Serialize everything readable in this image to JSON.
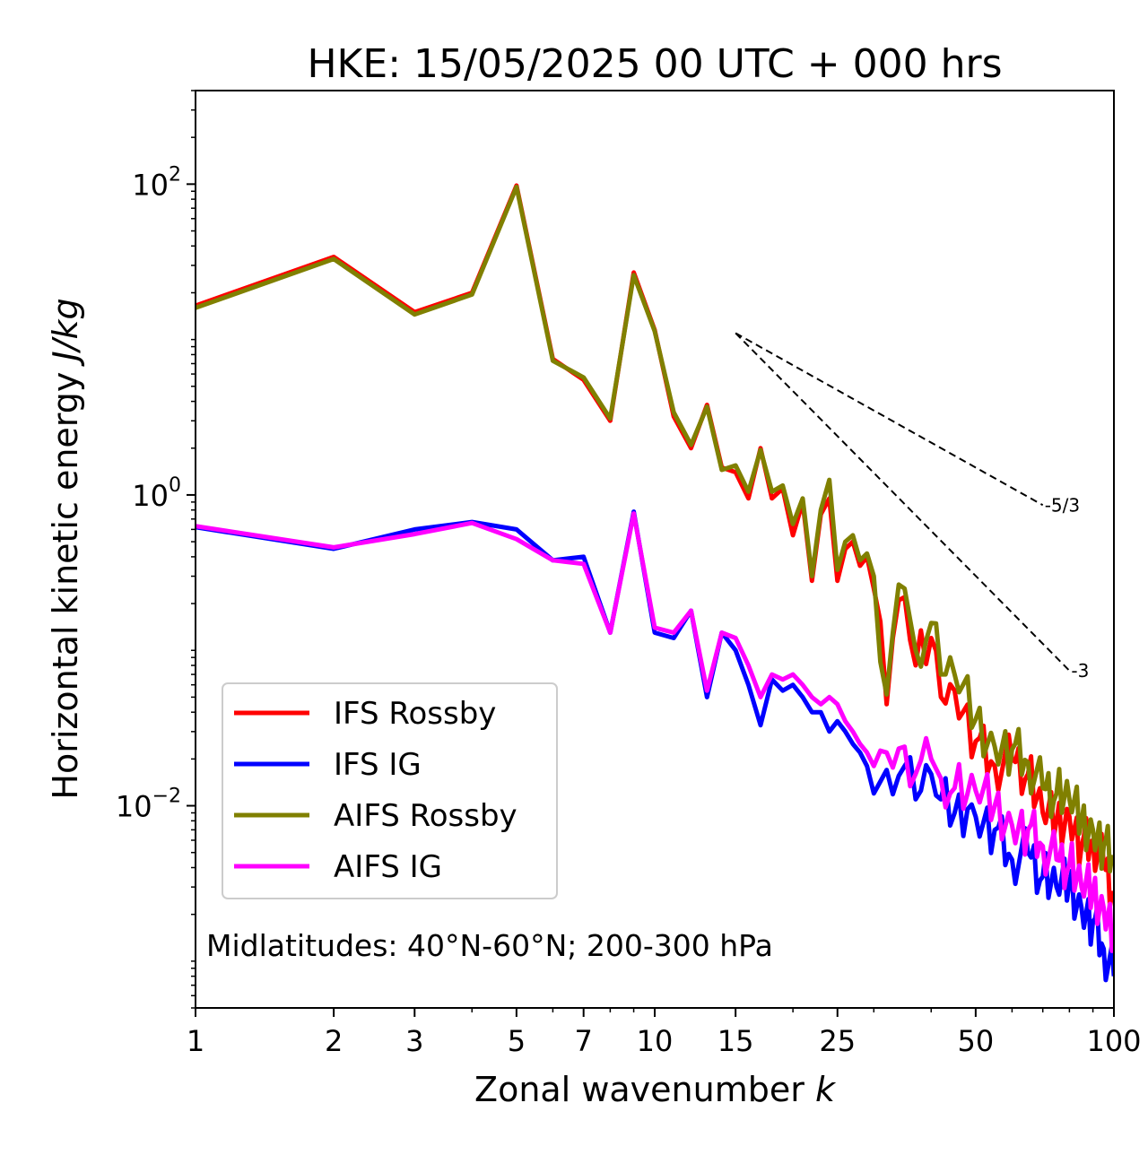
{
  "chart_data": {
    "type": "line",
    "title": "HKE: 15/05/2025 00 UTC + 000 hrs",
    "xlabel": "Zonal wavenumber k",
    "xlabel_main": "Zonal wavenumber ",
    "xlabel_var": "k",
    "ylabel_main": "Horizontal kinetic energy ",
    "ylabel_unit": "J/kg",
    "xscale": "log",
    "yscale": "log",
    "xlim": [
      1,
      100
    ],
    "ylim": [
      0.0005,
      400
    ],
    "xticks": [
      1,
      2,
      3,
      5,
      7,
      10,
      15,
      25,
      50,
      100
    ],
    "xtick_labels": [
      "1",
      "2",
      "3",
      "5",
      "7",
      "10",
      "15",
      "25",
      "50",
      "100"
    ],
    "yticks": [
      {
        "value": 100,
        "base": "10",
        "exp": "2"
      },
      {
        "value": 1,
        "base": "10",
        "exp": "0"
      },
      {
        "value": 0.01,
        "base": "10",
        "exp": "−2"
      }
    ],
    "legend_position": "lower-left",
    "annotation": "Midlatitudes: 40°N-60°N; 200-300 hPa",
    "reference_lines": [
      {
        "label": "-5/3",
        "x": [
          15,
          70
        ],
        "y": [
          11,
          0.86
        ]
      },
      {
        "label": "-3",
        "x": [
          15,
          80
        ],
        "y": [
          11,
          0.074
        ]
      }
    ],
    "series": [
      {
        "name": "IFS Rossby",
        "color": "#ff0000",
        "anchors": [
          [
            1,
            16.5
          ],
          [
            2,
            34
          ],
          [
            3,
            15
          ],
          [
            4,
            20
          ],
          [
            5,
            98
          ],
          [
            6,
            7.5
          ],
          [
            7,
            5.5
          ],
          [
            8,
            3.0
          ],
          [
            9,
            27
          ],
          [
            10,
            11.5
          ],
          [
            11,
            3.2
          ],
          [
            12,
            2.0
          ],
          [
            13,
            3.8
          ],
          [
            14,
            1.5
          ],
          [
            15,
            1.4
          ],
          [
            16,
            0.95
          ],
          [
            17,
            2.0
          ],
          [
            18,
            0.95
          ],
          [
            19,
            1.1
          ],
          [
            20,
            0.55
          ],
          [
            21,
            0.9
          ],
          [
            22,
            0.28
          ],
          [
            23,
            0.75
          ],
          [
            24,
            0.95
          ],
          [
            25,
            0.28
          ],
          [
            26,
            0.45
          ],
          [
            27,
            0.5
          ],
          [
            28,
            0.35
          ],
          [
            29,
            0.4
          ],
          [
            30,
            0.25
          ],
          [
            32,
            0.045
          ],
          [
            33,
            0.12
          ],
          [
            35,
            0.22
          ],
          [
            37,
            0.08
          ],
          [
            40,
            0.12
          ],
          [
            42,
            0.05
          ],
          [
            45,
            0.055
          ],
          [
            50,
            0.026
          ],
          [
            55,
            0.018
          ],
          [
            60,
            0.02
          ],
          [
            65,
            0.016
          ],
          [
            70,
            0.009
          ],
          [
            75,
            0.008
          ],
          [
            80,
            0.0085
          ],
          [
            85,
            0.0055
          ],
          [
            90,
            0.006
          ],
          [
            95,
            0.0042
          ],
          [
            100,
            0.0028
          ]
        ]
      },
      {
        "name": "IFS IG",
        "color": "#0000ff",
        "anchors": [
          [
            1,
            0.62
          ],
          [
            2,
            0.45
          ],
          [
            3,
            0.6
          ],
          [
            4,
            0.67
          ],
          [
            5,
            0.6
          ],
          [
            6,
            0.38
          ],
          [
            7,
            0.4
          ],
          [
            8,
            0.13
          ],
          [
            9,
            0.78
          ],
          [
            10,
            0.13
          ],
          [
            11,
            0.12
          ],
          [
            12,
            0.18
          ],
          [
            13,
            0.05
          ],
          [
            14,
            0.13
          ],
          [
            15,
            0.1
          ],
          [
            16,
            0.06
          ],
          [
            17,
            0.033
          ],
          [
            18,
            0.065
          ],
          [
            19,
            0.055
          ],
          [
            20,
            0.06
          ],
          [
            21,
            0.05
          ],
          [
            22,
            0.04
          ],
          [
            23,
            0.04
          ],
          [
            24,
            0.03
          ],
          [
            25,
            0.035
          ],
          [
            26,
            0.03
          ],
          [
            27,
            0.025
          ],
          [
            28,
            0.022
          ],
          [
            29,
            0.018
          ],
          [
            30,
            0.012
          ],
          [
            32,
            0.017
          ],
          [
            35,
            0.018
          ],
          [
            37,
            0.011
          ],
          [
            40,
            0.016
          ],
          [
            42,
            0.011
          ],
          [
            45,
            0.009
          ],
          [
            48,
            0.0095
          ],
          [
            50,
            0.0085
          ],
          [
            55,
            0.007
          ],
          [
            60,
            0.0045
          ],
          [
            65,
            0.005
          ],
          [
            70,
            0.0035
          ],
          [
            75,
            0.003
          ],
          [
            80,
            0.0032
          ],
          [
            85,
            0.0022
          ],
          [
            90,
            0.0018
          ],
          [
            95,
            0.0012
          ],
          [
            100,
            0.0008
          ]
        ]
      },
      {
        "name": "AIFS Rossby",
        "color": "#808000",
        "anchors": [
          [
            1,
            16
          ],
          [
            2,
            33
          ],
          [
            3,
            14.5
          ],
          [
            4,
            19.5
          ],
          [
            5,
            96
          ],
          [
            6,
            7.3
          ],
          [
            7,
            5.7
          ],
          [
            8,
            3.1
          ],
          [
            9,
            26
          ],
          [
            10,
            11.3
          ],
          [
            11,
            3.4
          ],
          [
            12,
            2.1
          ],
          [
            13,
            3.7
          ],
          [
            14,
            1.45
          ],
          [
            15,
            1.55
          ],
          [
            16,
            1.05
          ],
          [
            17,
            1.95
          ],
          [
            18,
            1.05
          ],
          [
            19,
            1.15
          ],
          [
            20,
            0.65
          ],
          [
            21,
            0.95
          ],
          [
            22,
            0.3
          ],
          [
            23,
            0.8
          ],
          [
            24,
            1.25
          ],
          [
            25,
            0.33
          ],
          [
            26,
            0.5
          ],
          [
            27,
            0.55
          ],
          [
            28,
            0.38
          ],
          [
            29,
            0.42
          ],
          [
            30,
            0.3
          ],
          [
            32,
            0.052
          ],
          [
            33,
            0.13
          ],
          [
            35,
            0.25
          ],
          [
            37,
            0.1
          ],
          [
            40,
            0.15
          ],
          [
            42,
            0.07
          ],
          [
            45,
            0.07
          ],
          [
            50,
            0.036
          ],
          [
            55,
            0.024
          ],
          [
            60,
            0.023
          ],
          [
            65,
            0.019
          ],
          [
            70,
            0.013
          ],
          [
            75,
            0.012
          ],
          [
            80,
            0.011
          ],
          [
            85,
            0.008
          ],
          [
            90,
            0.007
          ],
          [
            95,
            0.0055
          ],
          [
            100,
            0.0045
          ]
        ]
      },
      {
        "name": "AIFS IG",
        "color": "#ff00ff",
        "anchors": [
          [
            1,
            0.63
          ],
          [
            2,
            0.46
          ],
          [
            3,
            0.56
          ],
          [
            4,
            0.66
          ],
          [
            5,
            0.52
          ],
          [
            6,
            0.38
          ],
          [
            7,
            0.36
          ],
          [
            8,
            0.13
          ],
          [
            9,
            0.76
          ],
          [
            10,
            0.14
          ],
          [
            11,
            0.13
          ],
          [
            12,
            0.18
          ],
          [
            13,
            0.055
          ],
          [
            14,
            0.13
          ],
          [
            15,
            0.12
          ],
          [
            16,
            0.08
          ],
          [
            17,
            0.05
          ],
          [
            18,
            0.07
          ],
          [
            19,
            0.065
          ],
          [
            20,
            0.07
          ],
          [
            21,
            0.06
          ],
          [
            22,
            0.05
          ],
          [
            23,
            0.045
          ],
          [
            24,
            0.05
          ],
          [
            25,
            0.045
          ],
          [
            26,
            0.035
          ],
          [
            27,
            0.03
          ],
          [
            28,
            0.025
          ],
          [
            29,
            0.022
          ],
          [
            30,
            0.018
          ],
          [
            32,
            0.022
          ],
          [
            35,
            0.024
          ],
          [
            37,
            0.016
          ],
          [
            40,
            0.02
          ],
          [
            42,
            0.015
          ],
          [
            45,
            0.013
          ],
          [
            48,
            0.012
          ],
          [
            50,
            0.0125
          ],
          [
            55,
            0.01
          ],
          [
            60,
            0.0075
          ],
          [
            65,
            0.007
          ],
          [
            70,
            0.0055
          ],
          [
            75,
            0.0045
          ],
          [
            80,
            0.0042
          ],
          [
            85,
            0.003
          ],
          [
            90,
            0.0028
          ],
          [
            95,
            0.0022
          ],
          [
            100,
            0.0016
          ]
        ]
      }
    ]
  }
}
